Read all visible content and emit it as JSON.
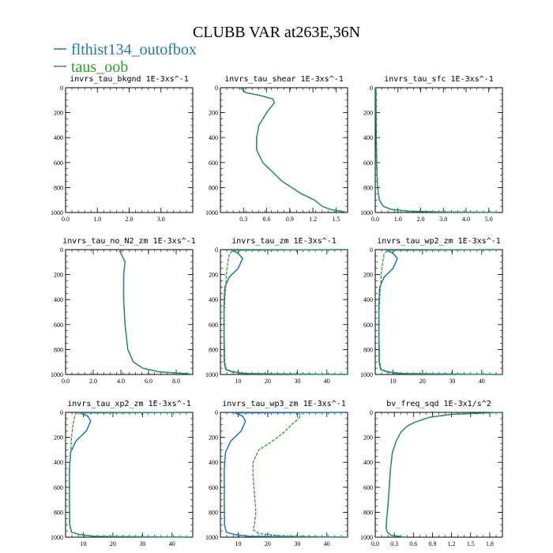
{
  "figure": {
    "title": "CLUBB VAR at263E,36N",
    "legend": [
      {
        "name": "flthist134_outofbox",
        "color": "#1f77b4"
      },
      {
        "name": "taus_oob",
        "color": "#2ca02c"
      }
    ]
  },
  "chart_data": [
    {
      "type": "line",
      "title": "invrs_tau_bkgnd   1E-3xs^-1",
      "xlim": [
        0,
        4.0
      ],
      "ylim": [
        1000,
        0
      ],
      "xticks": [
        0,
        1,
        2,
        3
      ],
      "xtick_labels": [
        "0.0",
        "1.0",
        "2.0",
        "3.0"
      ],
      "yticks": [
        0,
        200,
        400,
        600,
        800,
        1000
      ],
      "series": [
        {
          "color": "#1f77b4",
          "x": [],
          "y": []
        },
        {
          "color": "#2ca02c",
          "x": [],
          "y": []
        }
      ]
    },
    {
      "type": "line",
      "title": "invrs_tau_shear   1E-3xs^-1",
      "xlim": [
        0,
        1.65
      ],
      "ylim": [
        1000,
        0
      ],
      "xticks": [
        0.3,
        0.6,
        0.9,
        1.2,
        1.5
      ],
      "xtick_labels": [
        "0.3",
        "0.6",
        "0.9",
        "1.2",
        "1.5"
      ],
      "yticks": [
        0,
        200,
        400,
        600,
        800,
        1000
      ],
      "series": [
        {
          "color": "#1f77b4",
          "x": [
            0.27,
            0.33,
            0.5,
            0.68,
            0.7,
            0.6,
            0.5,
            0.47,
            0.47,
            0.55,
            0.8,
            1.05,
            1.22,
            1.32,
            1.45,
            1.62
          ],
          "y": [
            5,
            40,
            60,
            90,
            120,
            200,
            300,
            400,
            500,
            600,
            750,
            850,
            900,
            950,
            980,
            995
          ]
        },
        {
          "color": "#2ca02c",
          "x": [
            0.27,
            0.33,
            0.5,
            0.68,
            0.7,
            0.6,
            0.5,
            0.47,
            0.47,
            0.55,
            0.8,
            1.05,
            1.22,
            1.32,
            1.45,
            1.62
          ],
          "y": [
            5,
            40,
            60,
            90,
            120,
            200,
            300,
            400,
            500,
            600,
            750,
            850,
            900,
            950,
            980,
            995
          ]
        }
      ]
    },
    {
      "type": "line",
      "title": "invrs_tau_sfc   1E-3xs^-1",
      "xlim": [
        0,
        5.6
      ],
      "ylim": [
        1000,
        0
      ],
      "xticks": [
        0,
        1,
        2,
        3,
        4,
        5
      ],
      "xtick_labels": [
        "0.0",
        "1.0",
        "2.0",
        "3.0",
        "4.0",
        "5.0"
      ],
      "yticks": [
        0,
        200,
        400,
        600,
        800,
        1000
      ],
      "series": [
        {
          "color": "#1f77b4",
          "x": [
            0.03,
            0.04,
            0.06,
            0.1,
            0.18,
            0.35,
            0.7,
            1.5,
            3.0,
            5.4
          ],
          "y": [
            0,
            300,
            600,
            800,
            900,
            950,
            975,
            990,
            996,
            999
          ]
        },
        {
          "color": "#2ca02c",
          "x": [
            0.03,
            0.04,
            0.06,
            0.1,
            0.18,
            0.35,
            0.7,
            1.5,
            3.0,
            5.4
          ],
          "y": [
            0,
            300,
            600,
            800,
            900,
            950,
            975,
            990,
            996,
            999
          ]
        }
      ]
    },
    {
      "type": "line",
      "title": "invrs_tau_no_N2_zm   1E-3xs^-1",
      "xlim": [
        0,
        9.2
      ],
      "ylim": [
        1000,
        0
      ],
      "xticks": [
        0,
        2,
        4,
        6,
        8
      ],
      "xtick_labels": [
        "0.0",
        "2.0",
        "4.0",
        "6.0",
        "8.0"
      ],
      "yticks": [
        0,
        200,
        400,
        600,
        800,
        1000
      ],
      "series": [
        {
          "color": "#1f77b4",
          "x": [
            3.9,
            4.1,
            4.3,
            4.2,
            4.2,
            4.3,
            4.5,
            4.9,
            5.6,
            6.8,
            9.0
          ],
          "y": [
            10,
            50,
            100,
            200,
            400,
            600,
            800,
            900,
            950,
            980,
            995
          ]
        },
        {
          "color": "#2ca02c",
          "x": [
            3.9,
            4.1,
            4.3,
            4.2,
            4.2,
            4.3,
            4.5,
            4.9,
            5.6,
            6.8,
            9.0
          ],
          "y": [
            10,
            50,
            100,
            200,
            400,
            600,
            800,
            900,
            950,
            980,
            995
          ]
        }
      ]
    },
    {
      "type": "line",
      "title": "invrs_tau_zm   1E-3xs^-1",
      "xlim": [
        4,
        47
      ],
      "ylim": [
        1000,
        0
      ],
      "xticks": [
        10,
        20,
        30,
        40
      ],
      "xtick_labels": [
        "10",
        "20",
        "30",
        "40"
      ],
      "yticks": [
        0,
        200,
        400,
        600,
        800,
        1000
      ],
      "series": [
        {
          "color": "#1f77b4",
          "x": [
            46,
            8,
            10,
            11.5,
            10,
            7,
            5.5,
            5.2,
            5.2,
            5.3,
            5.8,
            8,
            12,
            47
          ],
          "y": [
            0,
            5,
            30,
            70,
            150,
            220,
            300,
            450,
            700,
            900,
            960,
            980,
            993,
            1000
          ]
        },
        {
          "color": "#2ca02c",
          "x": [
            46,
            8,
            7,
            6.5,
            6,
            5.8,
            5.5,
            5.3,
            5.3,
            5.5,
            6,
            9,
            14,
            47
          ],
          "y": [
            0,
            5,
            40,
            100,
            200,
            300,
            400,
            500,
            700,
            900,
            960,
            980,
            993,
            1000
          ]
        }
      ]
    },
    {
      "type": "line",
      "title": "invrs_tau_wp2_zm   1E-3xs^-1",
      "xlim": [
        4,
        47
      ],
      "ylim": [
        1000,
        0
      ],
      "xticks": [
        10,
        20,
        30,
        40
      ],
      "xtick_labels": [
        "10",
        "20",
        "30",
        "40"
      ],
      "yticks": [
        0,
        200,
        400,
        600,
        800,
        1000
      ],
      "series": [
        {
          "color": "#1f77b4",
          "x": [
            46,
            8,
            10,
            11.5,
            10,
            7,
            5.5,
            5.2,
            5.2,
            5.3,
            5.8,
            8,
            12,
            47
          ],
          "y": [
            0,
            5,
            30,
            70,
            150,
            220,
            300,
            450,
            700,
            900,
            960,
            980,
            993,
            1000
          ]
        },
        {
          "color": "#2ca02c",
          "x": [
            46,
            8,
            7,
            6.5,
            6,
            5.8,
            5.5,
            5.3,
            5.3,
            5.5,
            6,
            9,
            14,
            47
          ],
          "y": [
            0,
            5,
            40,
            100,
            200,
            300,
            400,
            500,
            700,
            900,
            960,
            980,
            993,
            1000
          ]
        }
      ]
    },
    {
      "type": "line",
      "title": "invrs_tau_xp2_zm   1E-3xs^-1",
      "xlim": [
        4,
        47
      ],
      "ylim": [
        1000,
        0
      ],
      "xticks": [
        10,
        20,
        30,
        40
      ],
      "xtick_labels": [
        "10",
        "20",
        "30",
        "40"
      ],
      "yticks": [
        0,
        200,
        400,
        600,
        800,
        1000
      ],
      "series": [
        {
          "color": "#1f77b4",
          "x": [
            46,
            9,
            11.5,
            12.5,
            11,
            7.5,
            5.7,
            5.3,
            5.3,
            5.4,
            6,
            9,
            14,
            47
          ],
          "y": [
            0,
            5,
            30,
            70,
            150,
            230,
            320,
            450,
            700,
            900,
            960,
            980,
            993,
            1000
          ]
        },
        {
          "color": "#2ca02c",
          "x": [
            46,
            7.5,
            7,
            6.5,
            6,
            5.8,
            5.5,
            5.3,
            5.3,
            5.5,
            6,
            9,
            14,
            47
          ],
          "y": [
            0,
            5,
            40,
            100,
            200,
            300,
            400,
            500,
            700,
            900,
            960,
            980,
            993,
            1000
          ]
        }
      ]
    },
    {
      "type": "line",
      "title": "invrs_tau_wp3_zm   1E-3xs^-1",
      "xlim": [
        4,
        47
      ],
      "ylim": [
        1000,
        0
      ],
      "xticks": [
        10,
        20,
        30,
        40
      ],
      "xtick_labels": [
        "10",
        "20",
        "30",
        "40"
      ],
      "yticks": [
        0,
        200,
        400,
        600,
        800,
        1000
      ],
      "series": [
        {
          "color": "#1f77b4",
          "x": [
            46,
            9,
            11.5,
            12.5,
            11,
            7.5,
            5.7,
            5.3,
            5.3,
            5.4,
            6,
            9,
            14,
            47
          ],
          "y": [
            0,
            5,
            30,
            70,
            150,
            230,
            320,
            450,
            700,
            900,
            960,
            980,
            993,
            1000
          ]
        },
        {
          "color": "#2ca02c",
          "x": [
            30.5,
            31,
            30,
            28,
            25,
            21,
            17,
            15,
            15,
            15.5,
            16,
            15.5,
            15,
            17,
            25,
            47
          ],
          "y": [
            0,
            30,
            60,
            100,
            170,
            240,
            300,
            400,
            500,
            650,
            800,
            900,
            940,
            970,
            990,
            1000
          ]
        }
      ]
    },
    {
      "type": "line",
      "title": "bv_freq_sqd   1E-3x1/s^2",
      "xlim": [
        0,
        2.0
      ],
      "ylim": [
        1000,
        0
      ],
      "xticks": [
        0,
        0.3,
        0.6,
        0.9,
        1.2,
        1.5,
        1.8
      ],
      "xtick_labels": [
        "0.0",
        "0.3",
        "0.6",
        "0.9",
        "1.2",
        "1.5",
        "1.8"
      ],
      "yticks": [
        0,
        200,
        400,
        600,
        800,
        1000
      ],
      "series": [
        {
          "color": "#1f77b4",
          "x": [
            1.98,
            1.75,
            1.2,
            0.85,
            0.62,
            0.5,
            0.4,
            0.33,
            0.27,
            0.24,
            0.22,
            0.2,
            0.18,
            0.17,
            0.19,
            0.25,
            0.45
          ],
          "y": [
            0,
            5,
            15,
            40,
            80,
            110,
            160,
            230,
            320,
            450,
            600,
            750,
            850,
            930,
            960,
            985,
            998
          ]
        },
        {
          "color": "#2ca02c",
          "x": [
            1.98,
            1.75,
            1.2,
            0.85,
            0.62,
            0.5,
            0.4,
            0.33,
            0.27,
            0.24,
            0.22,
            0.2,
            0.18,
            0.17,
            0.19,
            0.25,
            0.45
          ],
          "y": [
            0,
            5,
            15,
            40,
            80,
            110,
            160,
            230,
            320,
            450,
            600,
            750,
            850,
            930,
            960,
            985,
            998
          ]
        }
      ]
    }
  ]
}
